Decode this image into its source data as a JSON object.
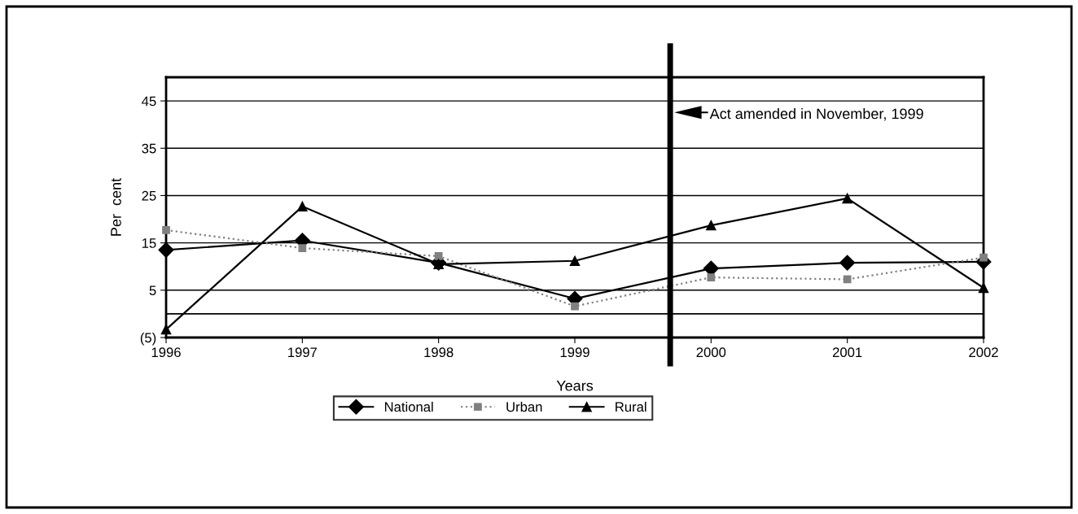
{
  "chart_data": {
    "type": "line",
    "xlabel": "Years",
    "ylabel": "Per  cent",
    "x": [
      1996,
      1997,
      1998,
      1999,
      2000,
      2001,
      2002
    ],
    "xlim": [
      1996,
      2002
    ],
    "xticks": [
      1996,
      1997,
      1998,
      1999,
      2000,
      2001,
      2002
    ],
    "ylim": [
      -5,
      50
    ],
    "yticks": [
      {
        "value": -5,
        "label": "(5)"
      },
      5,
      15,
      25,
      35,
      45
    ],
    "grid": "y",
    "legend": "bottom",
    "series": [
      {
        "name": "National",
        "color": "#000000",
        "marker": "diamond",
        "line_style": "solid",
        "values": [
          13.5,
          15.5,
          10.8,
          3.2,
          9.6,
          10.8,
          11.0
        ]
      },
      {
        "name": "Urban",
        "color": "#808080",
        "marker": "square",
        "line_style": "dotted",
        "values": [
          17.7,
          13.9,
          12.2,
          1.6,
          7.7,
          7.3,
          11.9
        ]
      },
      {
        "name": "Rural",
        "color": "#000000",
        "marker": "triangle",
        "line_style": "solid",
        "values": [
          -3.3,
          22.7,
          10.5,
          11.2,
          18.7,
          24.4,
          5.5
        ]
      }
    ],
    "ref_lines": [
      {
        "axis": "y",
        "value": 0,
        "color": "#000000",
        "line_style": "solid"
      },
      {
        "axis": "x",
        "value": 1999.7,
        "color": "#000000",
        "line_style": "solid"
      }
    ],
    "annotations": [
      "Act amended in November, 1999"
    ]
  }
}
